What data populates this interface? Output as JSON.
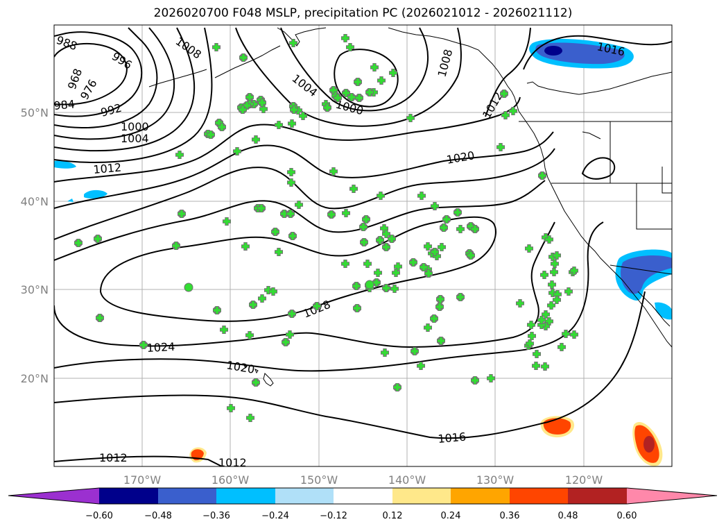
{
  "title": "2026020700 F048 MSLP, precipitation PC (2026021012 - 2026021112)",
  "lat_labels": [
    "50°N",
    "40°N",
    "30°N",
    "20°N"
  ],
  "lon_labels": [
    "170°W",
    "160°W",
    "150°W",
    "140°W",
    "130°W",
    "120°W"
  ],
  "isobar_labels": [
    "988",
    "996",
    "1008",
    "1016",
    "1004",
    "1000",
    "1008",
    "968",
    "976",
    "984",
    "992",
    "1000",
    "1004",
    "1012",
    "1012",
    "1020",
    "1028",
    "1024",
    "1020",
    "1016",
    "1012",
    "1012"
  ],
  "colorbar": {
    "ticks": [
      "−0.60",
      "−0.48",
      "−0.36",
      "−0.24",
      "−0.12",
      "0.12",
      "0.24",
      "0.36",
      "0.48",
      "0.60"
    ],
    "colors": [
      "#9b30d0",
      "#00008b",
      "#3a5fcd",
      "#00bfff",
      "#b0e0f8",
      "#ffffff",
      "#ffe88a",
      "#ffa500",
      "#ff4500",
      "#b22222",
      "#ff88aa"
    ]
  },
  "colors": {
    "grid": "#b0b0b0",
    "land_line": "#000000",
    "marker_fill": "#33dd33",
    "marker_circle": "#808080"
  },
  "markers": {
    "plus": [
      [
        312,
        68
      ],
      [
        498,
        55
      ],
      [
        505,
        68
      ],
      [
        423,
        62
      ],
      [
        540,
        97
      ],
      [
        567,
        105
      ],
      [
        550,
        116
      ],
      [
        539,
        133
      ],
      [
        592,
        170
      ],
      [
        470,
        150
      ],
      [
        437,
        167
      ],
      [
        430,
        159
      ],
      [
        402,
        180
      ],
      [
        421,
        178
      ],
      [
        380,
        157
      ],
      [
        369,
        201
      ],
      [
        342,
        218
      ],
      [
        259,
        223
      ],
      [
        481,
        247
      ],
      [
        510,
        272
      ],
      [
        549,
        282
      ],
      [
        420,
        263
      ],
      [
        420,
        248
      ],
      [
        431,
        295
      ],
      [
        499,
        307
      ],
      [
        608,
        282
      ],
      [
        627,
        297
      ],
      [
        327,
        319
      ],
      [
        354,
        355
      ],
      [
        402,
        363
      ],
      [
        498,
        380
      ],
      [
        530,
        380
      ],
      [
        545,
        393
      ],
      [
        574,
        384
      ],
      [
        571,
        393
      ],
      [
        554,
        329
      ],
      [
        557,
        337
      ],
      [
        533,
        415
      ],
      [
        569,
        416
      ],
      [
        617,
        355
      ],
      [
        623,
        365
      ],
      [
        664,
        330
      ],
      [
        637,
        356
      ],
      [
        630,
        369
      ],
      [
        617,
        388
      ],
      [
        617,
        472
      ],
      [
        607,
        527
      ],
      [
        387,
        418
      ],
      [
        394,
        420
      ],
      [
        378,
        430
      ],
      [
        360,
        483
      ],
      [
        323,
        475
      ],
      [
        418,
        482
      ],
      [
        555,
        508
      ],
      [
        333,
        588
      ],
      [
        361,
        602
      ],
      [
        708,
        545
      ],
      [
        722,
        212
      ],
      [
        729,
        166
      ],
      [
        740,
        160
      ],
      [
        763,
        358
      ],
      [
        787,
        342
      ],
      [
        792,
        345
      ],
      [
        797,
        370
      ],
      [
        800,
        380
      ],
      [
        803,
        368
      ],
      [
        799,
        392
      ],
      [
        785,
        396
      ],
      [
        796,
        410
      ],
      [
        797,
        422
      ],
      [
        804,
        424
      ],
      [
        803,
        432
      ],
      [
        820,
        420
      ],
      [
        795,
        440
      ],
      [
        787,
        453
      ],
      [
        792,
        463
      ],
      [
        787,
        470
      ],
      [
        781,
        468
      ],
      [
        781,
        461
      ],
      [
        766,
        468
      ],
      [
        767,
        484
      ],
      [
        762,
        498
      ],
      [
        774,
        510
      ],
      [
        764,
        495
      ],
      [
        786,
        528
      ],
      [
        773,
        527
      ],
      [
        810,
        500
      ],
      [
        816,
        481
      ],
      [
        828,
        482
      ],
      [
        750,
        437
      ],
      [
        826,
        392
      ],
      [
        828,
        390
      ]
    ],
    "circle_plus": [
      [
        351,
        83
      ],
      [
        516,
        118
      ],
      [
        533,
        133
      ],
      [
        481,
        130
      ],
      [
        484,
        138
      ],
      [
        487,
        141
      ],
      [
        499,
        134
      ],
      [
        507,
        140
      ],
      [
        518,
        141
      ],
      [
        472,
        155
      ],
      [
        360,
        140
      ],
      [
        348,
        155
      ],
      [
        366,
        150
      ],
      [
        376,
        144
      ],
      [
        378,
        148
      ],
      [
        360,
        150
      ],
      [
        356,
        152
      ],
      [
        350,
        158
      ],
      [
        423,
        153
      ],
      [
        424,
        158
      ],
      [
        316,
        177
      ],
      [
        320,
        183
      ],
      [
        300,
        193
      ],
      [
        304,
        194
      ],
      [
        372,
        300
      ],
      [
        377,
        300
      ],
      [
        410,
        308
      ],
      [
        419,
        308
      ],
      [
        478,
        309
      ],
      [
        528,
        316
      ],
      [
        565,
        344
      ],
      [
        397,
        334
      ],
      [
        422,
        340
      ],
      [
        525,
        349
      ],
      [
        548,
        346
      ],
      [
        557,
        356
      ],
      [
        524,
        327
      ],
      [
        660,
        306
      ],
      [
        640,
        328
      ],
      [
        644,
        316
      ],
      [
        679,
        326
      ],
      [
        685,
        330
      ],
      [
        677,
        365
      ],
      [
        679,
        368
      ],
      [
        627,
        363
      ],
      [
        596,
        378
      ],
      [
        611,
        385
      ],
      [
        618,
        394
      ],
      [
        543,
        407
      ],
      [
        557,
        415
      ],
      [
        514,
        412
      ],
      [
        532,
        411
      ],
      [
        635,
        431
      ],
      [
        634,
        442
      ],
      [
        664,
        428
      ],
      [
        626,
        459
      ],
      [
        636,
        491
      ],
      [
        598,
        506
      ],
      [
        573,
        558
      ],
      [
        685,
        548
      ],
      [
        365,
        439
      ],
      [
        313,
        447
      ],
      [
        421,
        452
      ],
      [
        412,
        493
      ],
      [
        457,
        441
      ],
      [
        515,
        444
      ],
      [
        369,
        551
      ],
      [
        262,
        308
      ],
      [
        254,
        354
      ],
      [
        207,
        497
      ],
      [
        113,
        350
      ],
      [
        141,
        344
      ],
      [
        144,
        458
      ],
      [
        727,
        135
      ],
      [
        782,
        253
      ]
    ],
    "dot": [
      [
        272,
        414
      ],
      [
        533,
        410
      ]
    ]
  }
}
